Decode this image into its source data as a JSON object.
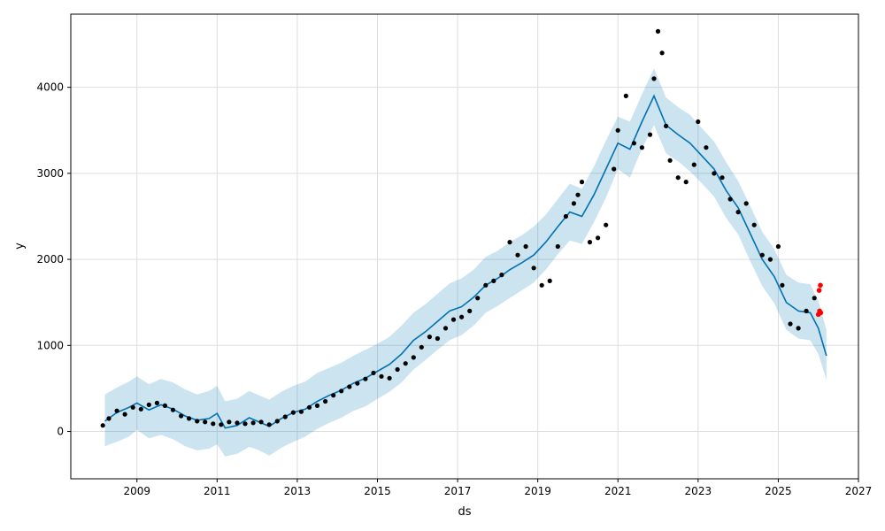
{
  "chart_data": {
    "type": "line",
    "title": "",
    "xlabel": "ds",
    "ylabel": "y",
    "xlim": [
      2007.35,
      2027.0
    ],
    "ylim": [
      -550,
      4850
    ],
    "grid": true,
    "x_ticks": [
      2009,
      2011,
      2013,
      2015,
      2017,
      2019,
      2021,
      2023,
      2025,
      2027
    ],
    "x_tick_labels": [
      "2009",
      "2011",
      "2013",
      "2015",
      "2017",
      "2019",
      "2021",
      "2023",
      "2025",
      "2027"
    ],
    "y_ticks": [
      0,
      1000,
      2000,
      3000,
      4000
    ],
    "y_tick_labels": [
      "0",
      "1000",
      "2000",
      "3000",
      "4000"
    ],
    "colors": {
      "forecast_line": "#0072B2",
      "uncertainty_band": "#0072B2",
      "observed_points": "#000000",
      "highlighted_points": "#ff0000",
      "grid": "#dddddd"
    },
    "series": [
      {
        "kind": "forecast",
        "x": [
          2008.2,
          2008.5,
          2008.8,
          2009.0,
          2009.3,
          2009.6,
          2009.9,
          2010.2,
          2010.5,
          2010.8,
          2011.0,
          2011.2,
          2011.5,
          2011.8,
          2012.0,
          2012.3,
          2012.6,
          2012.9,
          2013.2,
          2013.5,
          2013.8,
          2014.1,
          2014.4,
          2014.7,
          2015.0,
          2015.3,
          2015.6,
          2015.9,
          2016.2,
          2016.5,
          2016.8,
          2017.1,
          2017.4,
          2017.7,
          2018.0,
          2018.3,
          2018.6,
          2018.9,
          2019.2,
          2019.5,
          2019.8,
          2020.1,
          2020.4,
          2020.7,
          2021.0,
          2021.3,
          2021.6,
          2021.9,
          2022.2,
          2022.5,
          2022.8,
          2023.1,
          2023.4,
          2023.7,
          2024.0,
          2024.3,
          2024.6,
          2024.9,
          2025.2,
          2025.5,
          2025.8,
          2026.0,
          2026.2
        ],
        "yhat": [
          120,
          220,
          280,
          330,
          250,
          310,
          260,
          180,
          130,
          150,
          210,
          40,
          70,
          160,
          120,
          60,
          150,
          220,
          260,
          350,
          420,
          480,
          560,
          620,
          700,
          780,
          900,
          1060,
          1160,
          1280,
          1400,
          1450,
          1560,
          1700,
          1780,
          1880,
          1960,
          2050,
          2200,
          2380,
          2550,
          2500,
          2750,
          3050,
          3350,
          3280,
          3600,
          3900,
          3560,
          3450,
          3350,
          3200,
          3050,
          2800,
          2600,
          2300,
          2000,
          1800,
          1500,
          1400,
          1380,
          1200,
          880
        ],
        "yhat_lower": [
          -170,
          -120,
          -60,
          20,
          -80,
          -40,
          -90,
          -170,
          -220,
          -200,
          -150,
          -290,
          -260,
          -180,
          -210,
          -280,
          -190,
          -120,
          -60,
          30,
          100,
          160,
          240,
          290,
          380,
          460,
          570,
          720,
          830,
          950,
          1060,
          1120,
          1230,
          1380,
          1460,
          1550,
          1640,
          1730,
          1880,
          2060,
          2220,
          2180,
          2430,
          2720,
          3050,
          2950,
          3290,
          3560,
          3230,
          3140,
          3020,
          2880,
          2730,
          2480,
          2290,
          1980,
          1690,
          1490,
          1180,
          1080,
          1060,
          900,
          600
        ],
        "yhat_upper": [
          430,
          510,
          580,
          640,
          550,
          610,
          570,
          490,
          430,
          470,
          530,
          350,
          380,
          470,
          430,
          370,
          460,
          530,
          580,
          680,
          740,
          800,
          880,
          950,
          1020,
          1100,
          1230,
          1380,
          1480,
          1600,
          1720,
          1780,
          1880,
          2030,
          2100,
          2200,
          2280,
          2380,
          2520,
          2700,
          2880,
          2820,
          3080,
          3380,
          3660,
          3600,
          3920,
          4220,
          3880,
          3770,
          3680,
          3520,
          3370,
          3130,
          2910,
          2620,
          2320,
          2120,
          1820,
          1730,
          1710,
          1520,
          1180
        ]
      },
      {
        "kind": "observed",
        "x": [
          2008.15,
          2008.3,
          2008.5,
          2008.7,
          2008.9,
          2009.1,
          2009.3,
          2009.5,
          2009.7,
          2009.9,
          2010.1,
          2010.3,
          2010.5,
          2010.7,
          2010.9,
          2011.1,
          2011.3,
          2011.5,
          2011.7,
          2011.9,
          2012.1,
          2012.3,
          2012.5,
          2012.7,
          2012.9,
          2013.1,
          2013.3,
          2013.5,
          2013.7,
          2013.9,
          2014.1,
          2014.3,
          2014.5,
          2014.7,
          2014.9,
          2015.1,
          2015.3,
          2015.5,
          2015.7,
          2015.9,
          2016.1,
          2016.3,
          2016.5,
          2016.7,
          2016.9,
          2017.1,
          2017.3,
          2017.5,
          2017.7,
          2017.9,
          2018.1,
          2018.3,
          2018.5,
          2018.7,
          2018.9,
          2019.1,
          2019.3,
          2019.5,
          2019.7,
          2019.9,
          2020.0,
          2020.1,
          2020.3,
          2020.5,
          2020.7,
          2020.9,
          2021.0,
          2021.2,
          2021.4,
          2021.6,
          2021.8,
          2021.9,
          2022.0,
          2022.1,
          2022.2,
          2022.3,
          2022.5,
          2022.7,
          2022.9,
          2023.0,
          2023.2,
          2023.4,
          2023.6,
          2023.8,
          2024.0,
          2024.2,
          2024.4,
          2024.6,
          2024.8,
          2025.0,
          2025.1,
          2025.3,
          2025.5,
          2025.7,
          2025.9
        ],
        "y": [
          70,
          150,
          240,
          200,
          280,
          260,
          310,
          330,
          300,
          250,
          180,
          150,
          120,
          110,
          90,
          80,
          110,
          100,
          90,
          100,
          110,
          80,
          120,
          170,
          220,
          230,
          280,
          300,
          350,
          420,
          470,
          520,
          560,
          610,
          680,
          640,
          620,
          720,
          790,
          860,
          980,
          1100,
          1080,
          1200,
          1300,
          1330,
          1400,
          1550,
          1700,
          1750,
          1820,
          2200,
          2050,
          2150,
          1900,
          1700,
          1750,
          2150,
          2500,
          2650,
          2750,
          2900,
          2200,
          2250,
          2400,
          3050,
          3500,
          3900,
          3350,
          3300,
          3450,
          4100,
          4650,
          4400,
          3550,
          3150,
          2950,
          2900,
          3100,
          3600,
          3300,
          3000,
          2950,
          2700,
          2550,
          2650,
          2400,
          2050,
          2000,
          2150,
          1700,
          1250,
          1200,
          1400,
          1550
        ],
        "marker": "dot",
        "color": "#000000"
      },
      {
        "kind": "highlighted",
        "x": [
          2026.0,
          2026.03,
          2026.06,
          2026.02,
          2026.05
        ],
        "y": [
          1360,
          1400,
          1380,
          1640,
          1700
        ],
        "marker": "dot",
        "color": "#ff0000"
      }
    ]
  }
}
